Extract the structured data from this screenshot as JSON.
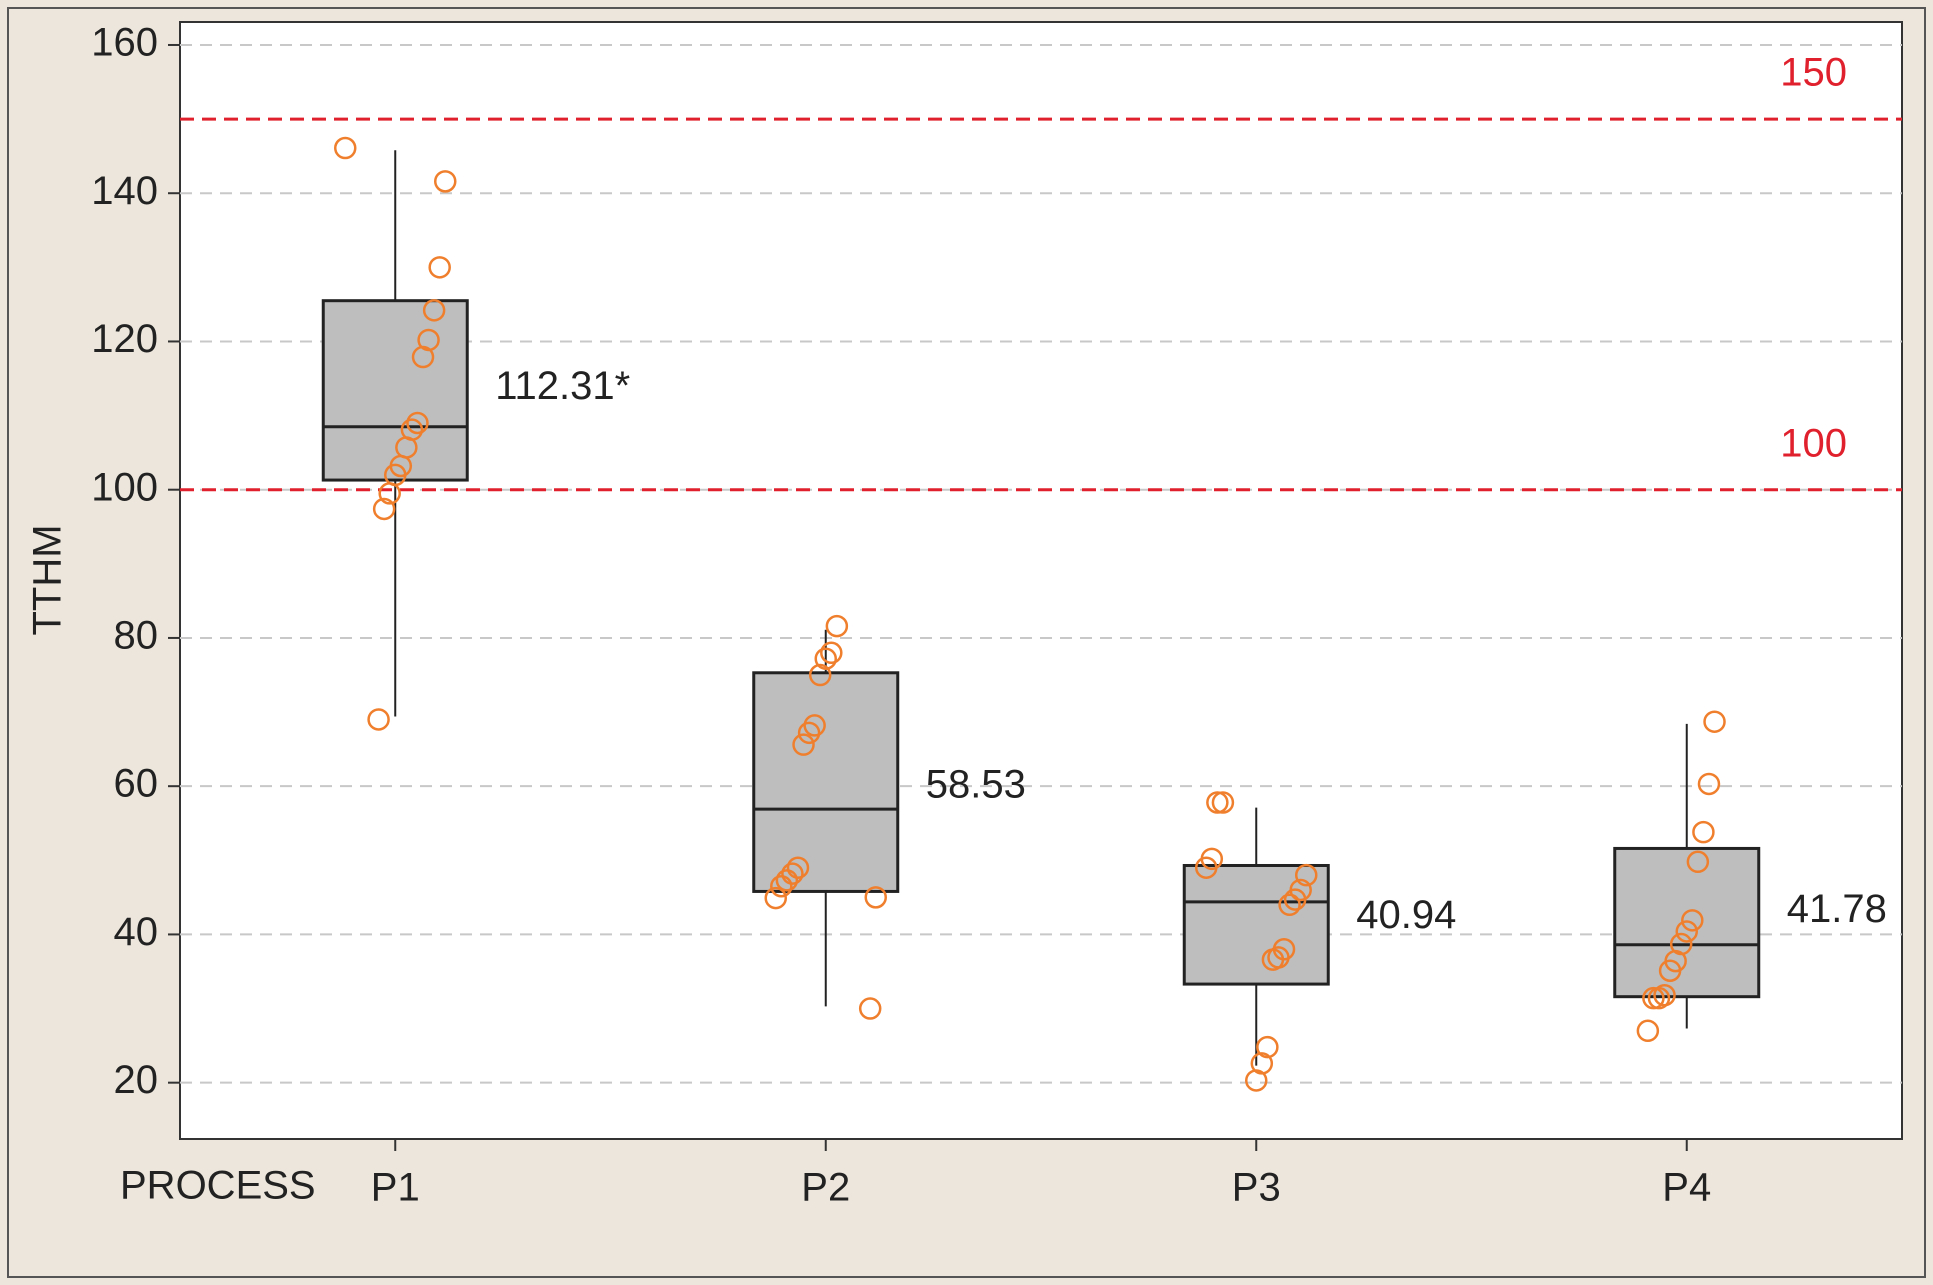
{
  "chart_data": {
    "type": "box",
    "x_label": "PROCESS",
    "y_label": "TTHM",
    "categories": [
      "P1",
      "P2",
      "P3",
      "P4"
    ],
    "whisker_low": [
      69.4,
      30.3,
      22.3,
      27.3
    ],
    "q1": [
      101.3,
      45.8,
      33.3,
      31.6
    ],
    "median": [
      108.5,
      56.9,
      44.4,
      38.6
    ],
    "q3": [
      125.5,
      75.3,
      49.3,
      51.6
    ],
    "whisker_high": [
      145.8,
      81.1,
      57.1,
      68.4
    ],
    "means": [
      112.31,
      58.53,
      40.94,
      41.78
    ],
    "mean_labels": [
      "112.31*",
      "58.53",
      "40.94",
      "41.78"
    ],
    "points": [
      [
        146.1,
        141.6,
        130,
        124.2,
        120.2,
        117.9,
        109,
        108.1,
        105.7,
        103.2,
        102,
        99.5,
        97.4,
        69
      ],
      [
        81.6,
        78,
        77.2,
        75,
        68.2,
        67.2,
        65.6,
        49,
        48.2,
        47.3,
        46.5,
        44.9,
        45,
        30
      ],
      [
        57.8,
        57.8,
        50.2,
        49,
        48,
        46,
        44.7,
        44,
        38,
        36.9,
        36.6,
        24.8,
        22.6,
        20.3
      ],
      [
        68.7,
        60.3,
        53.8,
        49.8,
        41.9,
        40.4,
        38.7,
        36.4,
        35.1,
        31.8,
        31.4,
        31.4,
        27
      ]
    ],
    "box_color": "#bebebe",
    "point_color": "#f07f2d",
    "reference_lines": [
      {
        "value": 150,
        "label": "150"
      },
      {
        "value": 100,
        "label": "100"
      }
    ],
    "reference_color": "#e0202c",
    "ylim": [
      12.4,
      163.1
    ],
    "yticks": [
      20,
      40,
      60,
      80,
      100,
      120,
      140,
      160
    ],
    "grid": true
  }
}
